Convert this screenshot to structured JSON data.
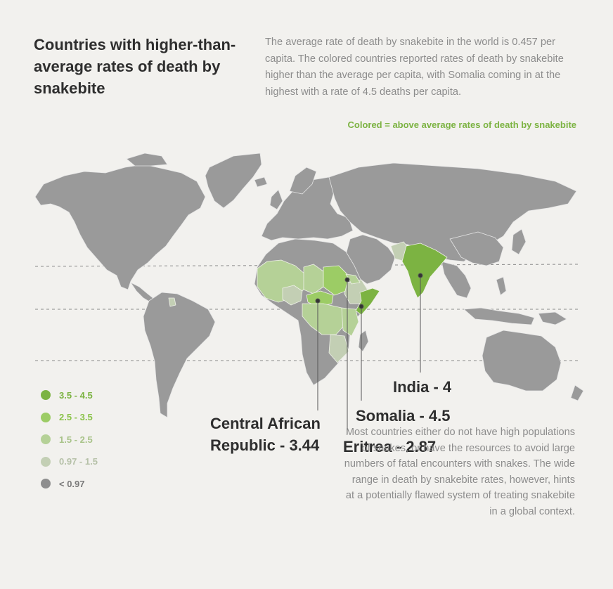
{
  "title": "Countries with higher-than-average rates of death by snakebite",
  "intro": "The average rate of death by snakebite in the world is 0.457 per capita. The colored countries reported rates of death by snakebite higher than the average per capita, with Somalia coming in at the highest with a rate of 4.5 deaths per capita.",
  "subhead": "Colored = above average rates of death by snakebite",
  "colors": {
    "background": "#f2f1ee",
    "land": "#9a9a9a",
    "border": "#e6e6e6",
    "bin_3_5_4_5": "#7cb342",
    "bin_2_5_3_5": "#9ccc65",
    "bin_1_5_2_5": "#b5d197",
    "bin_0_97_1_5": "#c3cfb4",
    "bin_under_0_97": "#8e8e8e"
  },
  "legend": [
    {
      "label": "3.5 - 4.5",
      "color": "#7cb342",
      "text_color": "#7cb342"
    },
    {
      "label": "2.5 - 3.5",
      "color": "#9ccc65",
      "text_color": "#8bc34a"
    },
    {
      "label": "1.5 - 2.5",
      "color": "#b5d197",
      "text_color": "#a8c389"
    },
    {
      "label": "0.97 - 1.5",
      "color": "#c3cfb4",
      "text_color": "#b6c1a8"
    },
    {
      "label": "< 0.97",
      "color": "#8e8e8e",
      "text_color": "#7a7a7a"
    }
  ],
  "callouts": [
    {
      "country": "India",
      "rate": 4,
      "label": "India - 4"
    },
    {
      "country": "Somalia",
      "rate": 4.5,
      "label": "Somalia - 4.5"
    },
    {
      "country": "Central African Republic",
      "rate": 3.44,
      "label_line1": "Central African",
      "label_line2": "Republic - 3.44"
    },
    {
      "country": "Eritrea",
      "rate": 2.87,
      "label": "Eritrea - 2.87"
    }
  ],
  "note": "Most countries either do not have high populations of snakes, or have the resources to avoid large numbers of fatal encounters with snakes. The wide range in death by snakebite rates, however, hints at a potentially flawed system of treating snakebite in a global context."
}
